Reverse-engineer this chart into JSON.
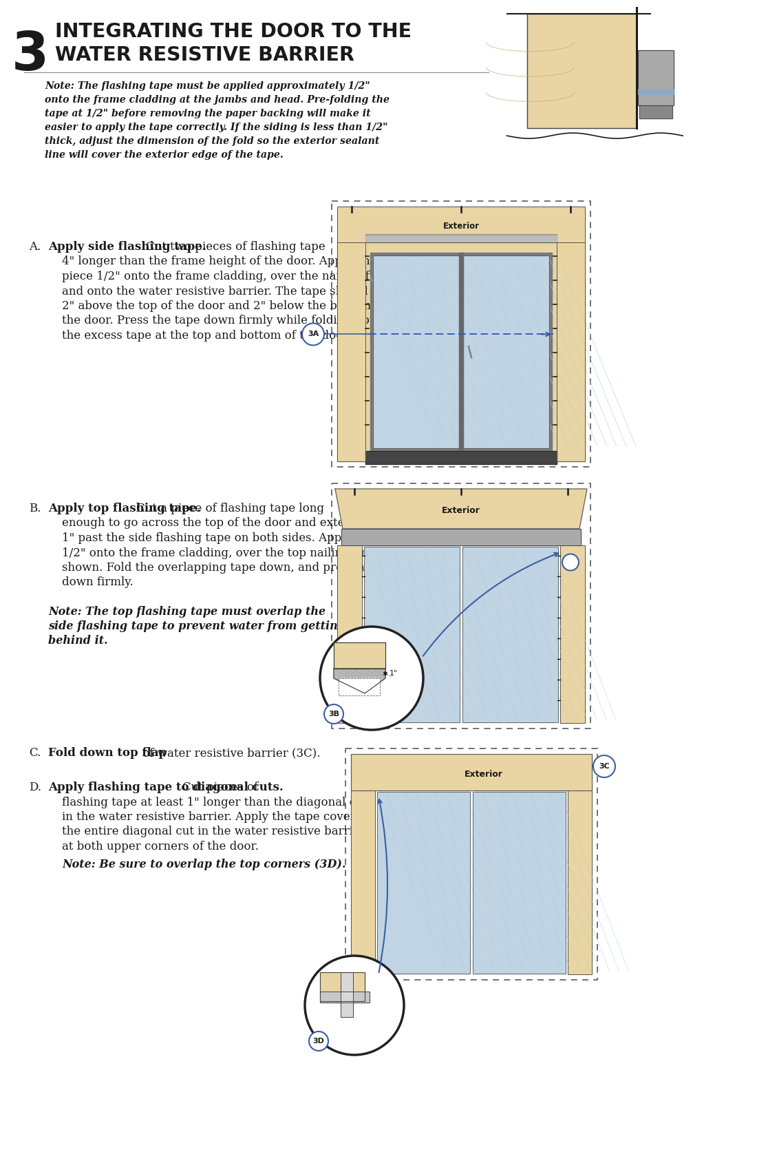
{
  "bg_color": "#ffffff",
  "page_width": 10.8,
  "page_height": 16.69,
  "section_number": "3",
  "section_title_line1": "INTEGRATING THE DOOR TO THE",
  "section_title_line2": "WATER RESISTIVE BARRIER",
  "note_intro": "Note: The flashing tape must be applied approximately 1/2\"",
  "note_line2": "onto the frame cladding at the jambs and head. Pre-folding the",
  "note_line3": "tape at 1/2\" before removing the paper backing will make it",
  "note_line4": "easier to apply the tape correctly. If the siding is less than 1/2\"",
  "note_line5": "thick, adjust the dimension of the fold so the exterior sealant",
  "note_line6": "line will cover the exterior edge of the tape.",
  "A_label": "A.",
  "A_bold": "Apply side flashing tape.",
  "A_rest": " Cut two pieces of flashing tape 4\" longer than the frame height of the door. Apply one piece 1/2\" onto the frame cladding, over the nailing fin and onto the water resistive barrier. The tape should extend 2\" above the top of the door and 2\" below the bottom of the door. Press the tape down firmly while folding down the excess tape at the top and bottom of the door.",
  "B_label": "B.",
  "B_bold": "Apply top flashing tape.",
  "B_rest": " Cut a piece of flashing tape long enough to go across the top of the door and extend at least 1\" past the side flashing tape on both sides. Apply the tape 1/2\" onto the frame cladding, over the top nailing fin as shown. Fold the overlapping tape down, and press all tape down firmly.",
  "B_note_bold": "Note: The top flashing tape must overlap the",
  "B_note_line2": "side flashing tape to prevent water from getting",
  "B_note_line3": "behind it.",
  "C_label": "C.",
  "C_bold": "Fold down top flap",
  "C_rest": " of water resistive barrier (3C).",
  "D_label": "D.",
  "D_bold": "Apply flashing tape to diagonal cuts.",
  "D_rest": " Cut pieces of flashing tape at least 1\" longer than the diagonal cuts in the water resistive barrier. Apply the tape covering the entire diagonal cut in the water resistive barrier at both upper corners of the door.",
  "D_note": "Note: Be sure to overlap the top corners (3D).",
  "tan": "#e8d5a3",
  "tan2": "#d4b87a",
  "dark": "#1a1a1a",
  "blue": "#3a5f9f",
  "gray": "#888888",
  "lgray": "#cccccc",
  "dgray": "#555555",
  "glass": "#d8e8f0",
  "glass2": "#c0d4e4",
  "frame_gray": "#aaaaaa",
  "white": "#ffffff"
}
